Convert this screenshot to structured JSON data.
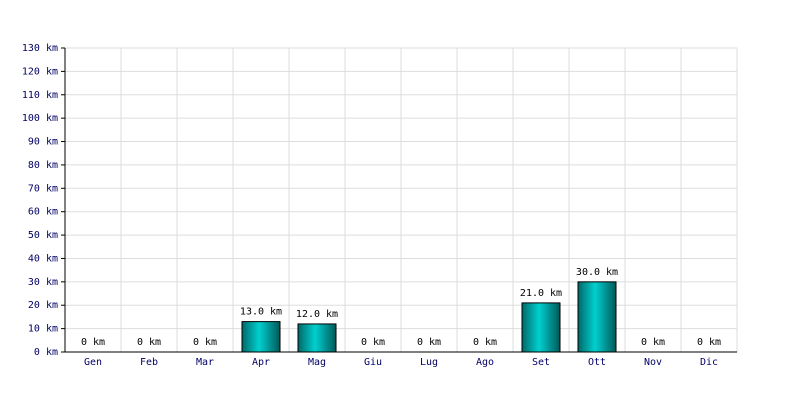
{
  "chart_data": {
    "type": "bar",
    "categories": [
      "Gen",
      "Feb",
      "Mar",
      "Apr",
      "Mag",
      "Giu",
      "Lug",
      "Ago",
      "Set",
      "Ott",
      "Nov",
      "Dic"
    ],
    "values": [
      0,
      0,
      0,
      13,
      12,
      0,
      0,
      0,
      21,
      30,
      0,
      0
    ],
    "value_labels": [
      "0 km",
      "0 km",
      "0 km",
      "13.0 km",
      "12.0 km",
      "0 km",
      "0 km",
      "0 km",
      "21.0 km",
      "30.0 km",
      "0 km",
      "0 km"
    ],
    "color": "#00d0d0",
    "ylim": [
      0,
      130
    ],
    "yticks": [
      {
        "value": 0,
        "label": "0 km"
      },
      {
        "value": 10,
        "label": "10 km"
      },
      {
        "value": 20,
        "label": "20 km"
      },
      {
        "value": 30,
        "label": "30 km"
      },
      {
        "value": 40,
        "label": "40 km"
      },
      {
        "value": 50,
        "label": "50 km"
      },
      {
        "value": 60,
        "label": "60 km"
      },
      {
        "value": 70,
        "label": "70 km"
      },
      {
        "value": 80,
        "label": "80 km"
      },
      {
        "value": 90,
        "label": "90 km"
      },
      {
        "value": 100,
        "label": "100 km"
      },
      {
        "value": 110,
        "label": "110 km"
      },
      {
        "value": 120,
        "label": "120 km"
      },
      {
        "value": 130,
        "label": "130 km"
      }
    ],
    "grid": true
  }
}
